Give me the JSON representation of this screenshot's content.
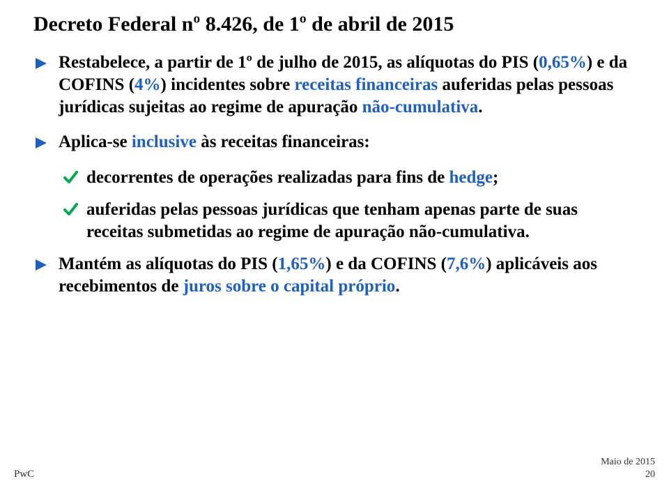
{
  "title": "Decreto Federal nº 8.426, de 1º de abril de 2015",
  "bullets": [
    {
      "level": 1,
      "segments": [
        {
          "text": "Restabelece, a partir de 1º de julho de 2015, as alíquotas do PIS (",
          "cls": "bold"
        },
        {
          "text": "0,65%",
          "cls": "blue-bold"
        },
        {
          "text": ") e da COFINS (",
          "cls": "bold"
        },
        {
          "text": "4%",
          "cls": "blue-bold"
        },
        {
          "text": ") incidentes sobre ",
          "cls": "bold"
        },
        {
          "text": "receitas financeiras ",
          "cls": "blue-bold"
        },
        {
          "text": "auferidas pelas pessoas jurídicas sujeitas ao regime de apuração ",
          "cls": "bold"
        },
        {
          "text": "não-cumulativa",
          "cls": "blue-bold"
        },
        {
          "text": ".",
          "cls": "bold"
        }
      ]
    },
    {
      "level": 1,
      "segments": [
        {
          "text": "Aplica-se ",
          "cls": "bold"
        },
        {
          "text": "inclusive ",
          "cls": "blue-bold"
        },
        {
          "text": "às receitas financeiras:",
          "cls": "bold"
        }
      ]
    },
    {
      "level": 2,
      "segments": [
        {
          "text": "decorrentes de operações realizadas para fins de ",
          "cls": "bold"
        },
        {
          "text": "hedge",
          "cls": "blue-bold"
        },
        {
          "text": ";",
          "cls": "bold"
        }
      ]
    },
    {
      "level": 2,
      "segments": [
        {
          "text": "auferidas pelas pessoas jurídicas que tenham apenas parte de suas receitas submetidas ao regime de apuração não-cumulativa.",
          "cls": "bold"
        }
      ]
    },
    {
      "level": 1,
      "segments": [
        {
          "text": "Mantém as alíquotas do PIS (",
          "cls": "bold"
        },
        {
          "text": "1,65%",
          "cls": "blue-bold"
        },
        {
          "text": ") e da COFINS (",
          "cls": "bold"
        },
        {
          "text": "7,6%",
          "cls": "blue-bold"
        },
        {
          "text": ") aplicáveis aos recebimentos de ",
          "cls": "bold"
        },
        {
          "text": "juros sobre o capital próprio",
          "cls": "blue-bold"
        },
        {
          "text": ".",
          "cls": "bold"
        }
      ]
    }
  ],
  "footer": {
    "left": "PwC",
    "right_top": "Maio de 2015",
    "right_bottom": "20"
  },
  "style": {
    "arrow_color": "#1f5fbf",
    "check_color": "#00a84f"
  }
}
